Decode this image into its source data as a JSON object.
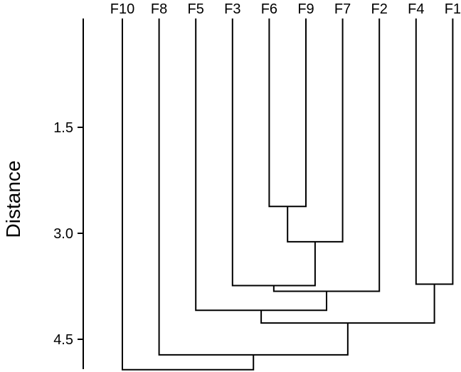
{
  "chart_data": {
    "type": "dendrogram",
    "orientation": "inverted",
    "ylabel": "Distance",
    "y_ticks": [
      1.5,
      3.0,
      4.5
    ],
    "y_tick_labels": [
      "1.5",
      "3.0",
      "4.5"
    ],
    "leaves": [
      "F10",
      "F8",
      "F5",
      "F3",
      "F6",
      "F9",
      "F7",
      "F2",
      "F4",
      "F1"
    ],
    "merges": [
      {
        "id": "m1",
        "left": "F6",
        "right": "F9",
        "height": 2.62
      },
      {
        "id": "m2",
        "left": "m1",
        "right": "F7",
        "height": 3.12
      },
      {
        "id": "m3",
        "left": "F3",
        "right": "m2",
        "height": 3.74
      },
      {
        "id": "m4",
        "left": "m3",
        "right": "F2",
        "height": 3.82
      },
      {
        "id": "m5",
        "left": "F4",
        "right": "F1",
        "height": 3.72
      },
      {
        "id": "m6",
        "left": "F5",
        "right": "m4",
        "height": 4.09
      },
      {
        "id": "m7",
        "left": "m6",
        "right": "m5",
        "height": 4.27
      },
      {
        "id": "m8",
        "left": "F8",
        "right": "m7",
        "height": 4.72
      },
      {
        "id": "m9",
        "left": "F10",
        "right": "m8",
        "height": 4.93
      }
    ],
    "grid": false,
    "legend": "none"
  }
}
